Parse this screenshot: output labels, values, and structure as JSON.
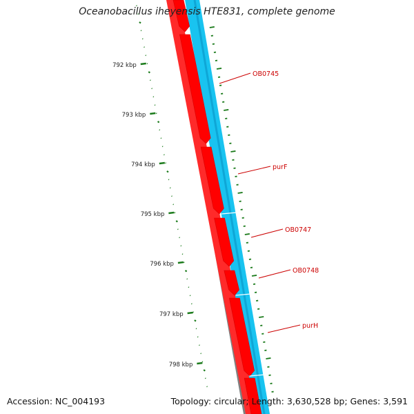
{
  "title": "Oceanobacillus iheyensis HTE831, complete genome",
  "footer": {
    "accession": "Accession: NC_004193",
    "stats": "Topology: circular; Length: 3,630,528 bp; Genes: 3,591"
  },
  "ticks": [
    "792 kbp",
    "793 kbp",
    "794 kbp",
    "795 kbp",
    "796 kbp",
    "797 kbp",
    "798 kbp"
  ],
  "genes": [
    {
      "label": "OB0745"
    },
    {
      "label": "purF"
    },
    {
      "label": "OB0747"
    },
    {
      "label": "OB0748"
    },
    {
      "label": "purH"
    }
  ],
  "colors": {
    "backbone": "#808080",
    "cds_forward": "#ff0000",
    "cds_reverse": "#19c3f0",
    "gc_skew": "#1a7a1a",
    "gene_label": "#cc0000"
  }
}
